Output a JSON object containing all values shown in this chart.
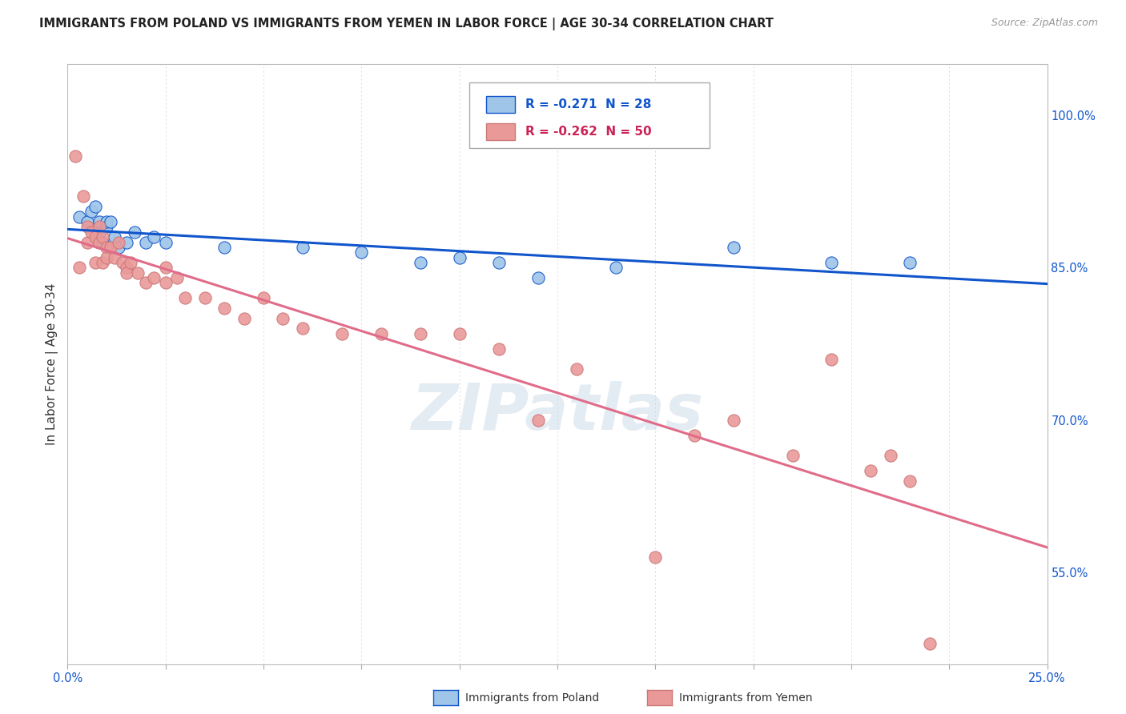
{
  "title": "IMMIGRANTS FROM POLAND VS IMMIGRANTS FROM YEMEN IN LABOR FORCE | AGE 30-34 CORRELATION CHART",
  "source": "Source: ZipAtlas.com",
  "ylabel": "In Labor Force | Age 30-34",
  "xlim": [
    0.0,
    0.25
  ],
  "ylim": [
    0.46,
    1.05
  ],
  "right_yticks": [
    0.55,
    0.7,
    0.85,
    1.0
  ],
  "right_yticklabels": [
    "55.0%",
    "70.0%",
    "85.0%",
    "100.0%"
  ],
  "xticks": [
    0.0,
    0.025,
    0.05,
    0.075,
    0.1,
    0.125,
    0.15,
    0.175,
    0.2,
    0.225,
    0.25
  ],
  "xticklabels": [
    "0.0%",
    "",
    "",
    "",
    "",
    "",
    "",
    "",
    "",
    "",
    "25.0%"
  ],
  "poland_color": "#9fc5e8",
  "yemen_color": "#ea9999",
  "poland_line_color": "#1155cc",
  "yemen_line_color": "#e06c8a",
  "poland_R": -0.271,
  "poland_N": 28,
  "yemen_R": -0.262,
  "yemen_N": 50,
  "watermark": "ZIPatlas",
  "background_color": "#ffffff",
  "grid_color": "#cccccc",
  "poland_scatter_x": [
    0.003,
    0.005,
    0.006,
    0.007,
    0.008,
    0.008,
    0.009,
    0.01,
    0.01,
    0.011,
    0.012,
    0.013,
    0.015,
    0.017,
    0.02,
    0.022,
    0.025,
    0.04,
    0.06,
    0.075,
    0.09,
    0.1,
    0.11,
    0.12,
    0.14,
    0.17,
    0.195,
    0.215
  ],
  "poland_scatter_y": [
    0.9,
    0.895,
    0.905,
    0.91,
    0.885,
    0.895,
    0.875,
    0.89,
    0.895,
    0.895,
    0.88,
    0.87,
    0.875,
    0.885,
    0.875,
    0.88,
    0.875,
    0.87,
    0.87,
    0.865,
    0.855,
    0.86,
    0.855,
    0.84,
    0.85,
    0.87,
    0.855,
    0.855
  ],
  "yemen_scatter_x": [
    0.002,
    0.003,
    0.004,
    0.005,
    0.005,
    0.006,
    0.007,
    0.007,
    0.008,
    0.008,
    0.009,
    0.009,
    0.01,
    0.01,
    0.011,
    0.012,
    0.013,
    0.014,
    0.015,
    0.015,
    0.016,
    0.018,
    0.02,
    0.022,
    0.025,
    0.025,
    0.028,
    0.03,
    0.035,
    0.04,
    0.045,
    0.05,
    0.055,
    0.06,
    0.07,
    0.08,
    0.09,
    0.1,
    0.11,
    0.12,
    0.13,
    0.15,
    0.16,
    0.17,
    0.185,
    0.195,
    0.205,
    0.21,
    0.215,
    0.22
  ],
  "yemen_scatter_y": [
    0.96,
    0.85,
    0.92,
    0.89,
    0.875,
    0.885,
    0.88,
    0.855,
    0.89,
    0.875,
    0.88,
    0.855,
    0.87,
    0.86,
    0.87,
    0.86,
    0.875,
    0.855,
    0.85,
    0.845,
    0.855,
    0.845,
    0.835,
    0.84,
    0.835,
    0.85,
    0.84,
    0.82,
    0.82,
    0.81,
    0.8,
    0.82,
    0.8,
    0.79,
    0.785,
    0.785,
    0.785,
    0.785,
    0.77,
    0.7,
    0.75,
    0.565,
    0.685,
    0.7,
    0.665,
    0.76,
    0.65,
    0.665,
    0.64,
    0.48
  ]
}
